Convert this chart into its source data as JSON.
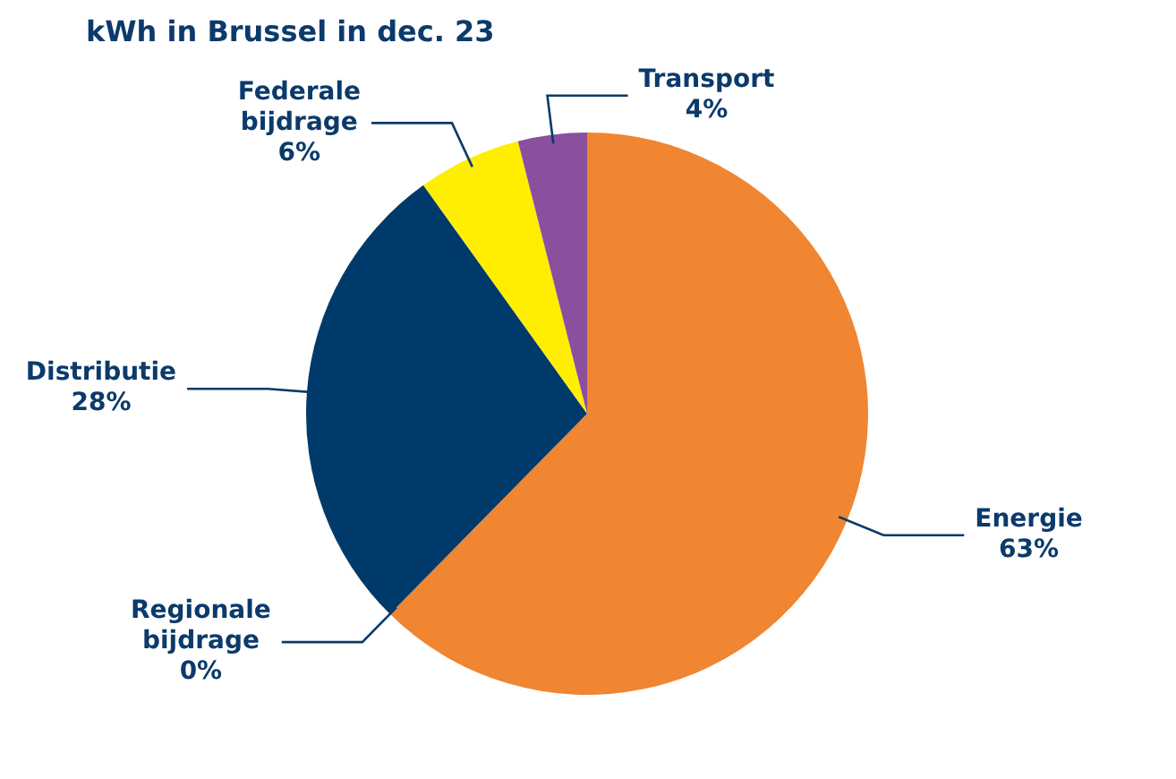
{
  "chart_data": {
    "type": "pie",
    "title": "kWh in Brussel in dec. 23",
    "categories": [
      "Energie",
      "Regionale bijdrage",
      "Distributie",
      "Federale bijdrage",
      "Transport"
    ],
    "values": [
      63,
      0,
      28,
      6,
      4
    ],
    "colors": [
      "#f08532",
      "#f08532",
      "#003a6b",
      "#ffee00",
      "#8b4f9e"
    ],
    "value_labels": [
      "63%",
      "0%",
      "28%",
      "6%",
      "4%"
    ]
  }
}
